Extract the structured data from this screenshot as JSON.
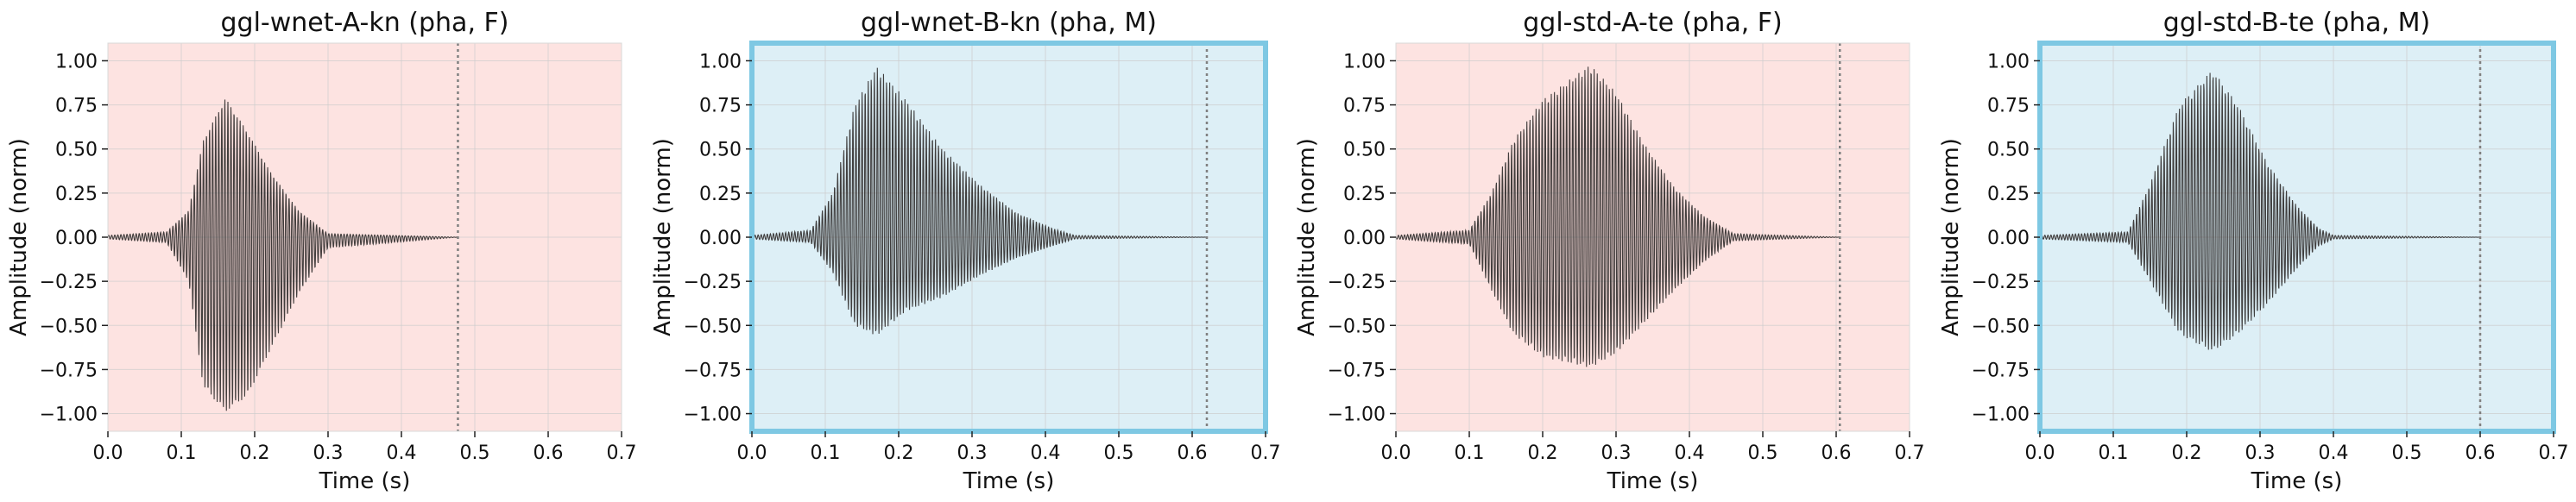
{
  "chart_data": [
    {
      "type": "line",
      "title": "ggl-wnet-A-kn (pha, F)",
      "xlabel": "Time (s)",
      "ylabel": "Amplitude (norm)",
      "xlim": [
        0.0,
        0.7
      ],
      "ylim": [
        -1.1,
        1.1
      ],
      "xticks": [
        "0.0",
        "0.1",
        "0.2",
        "0.3",
        "0.4",
        "0.5",
        "0.6",
        "0.7"
      ],
      "yticks": [
        "1.00",
        "0.75",
        "0.50",
        "0.25",
        "0.00",
        "−0.25",
        "−0.50",
        "−0.75",
        "−1.00"
      ],
      "grid": true,
      "background_color": "#fde3e1",
      "highlighted_frame": false,
      "end_marker_x": 0.477,
      "waveform": {
        "signal_start": 0.0,
        "signal_end": 0.477,
        "onset": 0.11,
        "peak_time": 0.16,
        "decay_end": 0.3,
        "max_amplitude": 0.79,
        "min_amplitude": -0.99,
        "envelope": [
          {
            "t": 0.0,
            "pos": 0.01,
            "neg": -0.01
          },
          {
            "t": 0.08,
            "pos": 0.03,
            "neg": -0.03
          },
          {
            "t": 0.11,
            "pos": 0.15,
            "neg": -0.25
          },
          {
            "t": 0.13,
            "pos": 0.55,
            "neg": -0.85
          },
          {
            "t": 0.16,
            "pos": 0.79,
            "neg": -0.99
          },
          {
            "t": 0.19,
            "pos": 0.6,
            "neg": -0.9
          },
          {
            "t": 0.22,
            "pos": 0.38,
            "neg": -0.65
          },
          {
            "t": 0.26,
            "pos": 0.15,
            "neg": -0.32
          },
          {
            "t": 0.3,
            "pos": 0.02,
            "neg": -0.06
          },
          {
            "t": 0.477,
            "pos": 0.0,
            "neg": 0.0
          }
        ]
      }
    },
    {
      "type": "line",
      "title": "ggl-wnet-B-kn (pha, M)",
      "xlabel": "Time (s)",
      "ylabel": "Amplitude (norm)",
      "xlim": [
        0.0,
        0.7
      ],
      "ylim": [
        -1.1,
        1.1
      ],
      "xticks": [
        "0.0",
        "0.1",
        "0.2",
        "0.3",
        "0.4",
        "0.5",
        "0.6",
        "0.7"
      ],
      "yticks": [
        "1.00",
        "0.75",
        "0.50",
        "0.25",
        "0.00",
        "−0.25",
        "−0.50",
        "−0.75",
        "−1.00"
      ],
      "grid": true,
      "background_color": "#ddeff6",
      "highlighted_frame": true,
      "frame_color": "#7ec8e3",
      "end_marker_x": 0.62,
      "waveform": {
        "signal_start": 0.0,
        "signal_end": 0.62,
        "onset": 0.11,
        "peak_time": 0.17,
        "decay_end": 0.44,
        "max_amplitude": 0.97,
        "min_amplitude": -0.56,
        "envelope": [
          {
            "t": 0.0,
            "pos": 0.01,
            "neg": -0.01
          },
          {
            "t": 0.08,
            "pos": 0.04,
            "neg": -0.03
          },
          {
            "t": 0.11,
            "pos": 0.25,
            "neg": -0.2
          },
          {
            "t": 0.14,
            "pos": 0.75,
            "neg": -0.5
          },
          {
            "t": 0.17,
            "pos": 0.97,
            "neg": -0.56
          },
          {
            "t": 0.21,
            "pos": 0.78,
            "neg": -0.42
          },
          {
            "t": 0.26,
            "pos": 0.5,
            "neg": -0.34
          },
          {
            "t": 0.31,
            "pos": 0.3,
            "neg": -0.22
          },
          {
            "t": 0.36,
            "pos": 0.14,
            "neg": -0.12
          },
          {
            "t": 0.41,
            "pos": 0.05,
            "neg": -0.05
          },
          {
            "t": 0.44,
            "pos": 0.01,
            "neg": -0.01
          },
          {
            "t": 0.62,
            "pos": 0.0,
            "neg": 0.0
          }
        ]
      }
    },
    {
      "type": "line",
      "title": "ggl-std-A-te (pha, F)",
      "xlabel": "Time (s)",
      "ylabel": "Amplitude (norm)",
      "xlim": [
        0.0,
        0.7
      ],
      "ylim": [
        -1.1,
        1.1
      ],
      "xticks": [
        "0.0",
        "0.1",
        "0.2",
        "0.3",
        "0.4",
        "0.5",
        "0.6",
        "0.7"
      ],
      "yticks": [
        "1.00",
        "0.75",
        "0.50",
        "0.25",
        "0.00",
        "−0.25",
        "−0.50",
        "−0.75",
        "−1.00"
      ],
      "grid": true,
      "background_color": "#fde3e1",
      "highlighted_frame": false,
      "end_marker_x": 0.605,
      "waveform": {
        "signal_start": 0.0,
        "signal_end": 0.605,
        "onset": 0.12,
        "peak_time": 0.265,
        "decay_end": 0.46,
        "max_amplitude": 0.98,
        "min_amplitude": -0.74,
        "envelope": [
          {
            "t": 0.0,
            "pos": 0.01,
            "neg": -0.01
          },
          {
            "t": 0.1,
            "pos": 0.04,
            "neg": -0.04
          },
          {
            "t": 0.13,
            "pos": 0.25,
            "neg": -0.3
          },
          {
            "t": 0.16,
            "pos": 0.55,
            "neg": -0.55
          },
          {
            "t": 0.2,
            "pos": 0.78,
            "neg": -0.68
          },
          {
            "t": 0.265,
            "pos": 0.98,
            "neg": -0.74
          },
          {
            "t": 0.3,
            "pos": 0.82,
            "neg": -0.66
          },
          {
            "t": 0.34,
            "pos": 0.52,
            "neg": -0.48
          },
          {
            "t": 0.38,
            "pos": 0.28,
            "neg": -0.3
          },
          {
            "t": 0.42,
            "pos": 0.12,
            "neg": -0.14
          },
          {
            "t": 0.46,
            "pos": 0.02,
            "neg": -0.02
          },
          {
            "t": 0.605,
            "pos": 0.0,
            "neg": 0.0
          }
        ]
      }
    },
    {
      "type": "line",
      "title": "ggl-std-B-te (pha, M)",
      "xlabel": "Time (s)",
      "ylabel": "Amplitude (norm)",
      "xlim": [
        0.0,
        0.7
      ],
      "ylim": [
        -1.1,
        1.1
      ],
      "xticks": [
        "0.0",
        "0.1",
        "0.2",
        "0.3",
        "0.4",
        "0.5",
        "0.6",
        "0.7"
      ],
      "yticks": [
        "1.00",
        "0.75",
        "0.50",
        "0.25",
        "0.00",
        "−0.25",
        "−0.50",
        "−0.75",
        "−1.00"
      ],
      "grid": true,
      "background_color": "#ddeff6",
      "highlighted_frame": true,
      "frame_color": "#7ec8e3",
      "end_marker_x": 0.6,
      "waveform": {
        "signal_start": 0.0,
        "signal_end": 0.6,
        "onset": 0.14,
        "peak_time": 0.235,
        "decay_end": 0.4,
        "max_amplitude": 0.95,
        "min_amplitude": -0.65,
        "envelope": [
          {
            "t": 0.0,
            "pos": 0.01,
            "neg": -0.01
          },
          {
            "t": 0.12,
            "pos": 0.03,
            "neg": -0.03
          },
          {
            "t": 0.15,
            "pos": 0.3,
            "neg": -0.25
          },
          {
            "t": 0.19,
            "pos": 0.75,
            "neg": -0.55
          },
          {
            "t": 0.235,
            "pos": 0.95,
            "neg": -0.65
          },
          {
            "t": 0.27,
            "pos": 0.75,
            "neg": -0.55
          },
          {
            "t": 0.31,
            "pos": 0.42,
            "neg": -0.38
          },
          {
            "t": 0.35,
            "pos": 0.18,
            "neg": -0.18
          },
          {
            "t": 0.38,
            "pos": 0.05,
            "neg": -0.05
          },
          {
            "t": 0.4,
            "pos": 0.01,
            "neg": -0.01
          },
          {
            "t": 0.6,
            "pos": 0.0,
            "neg": 0.0
          }
        ]
      }
    }
  ]
}
